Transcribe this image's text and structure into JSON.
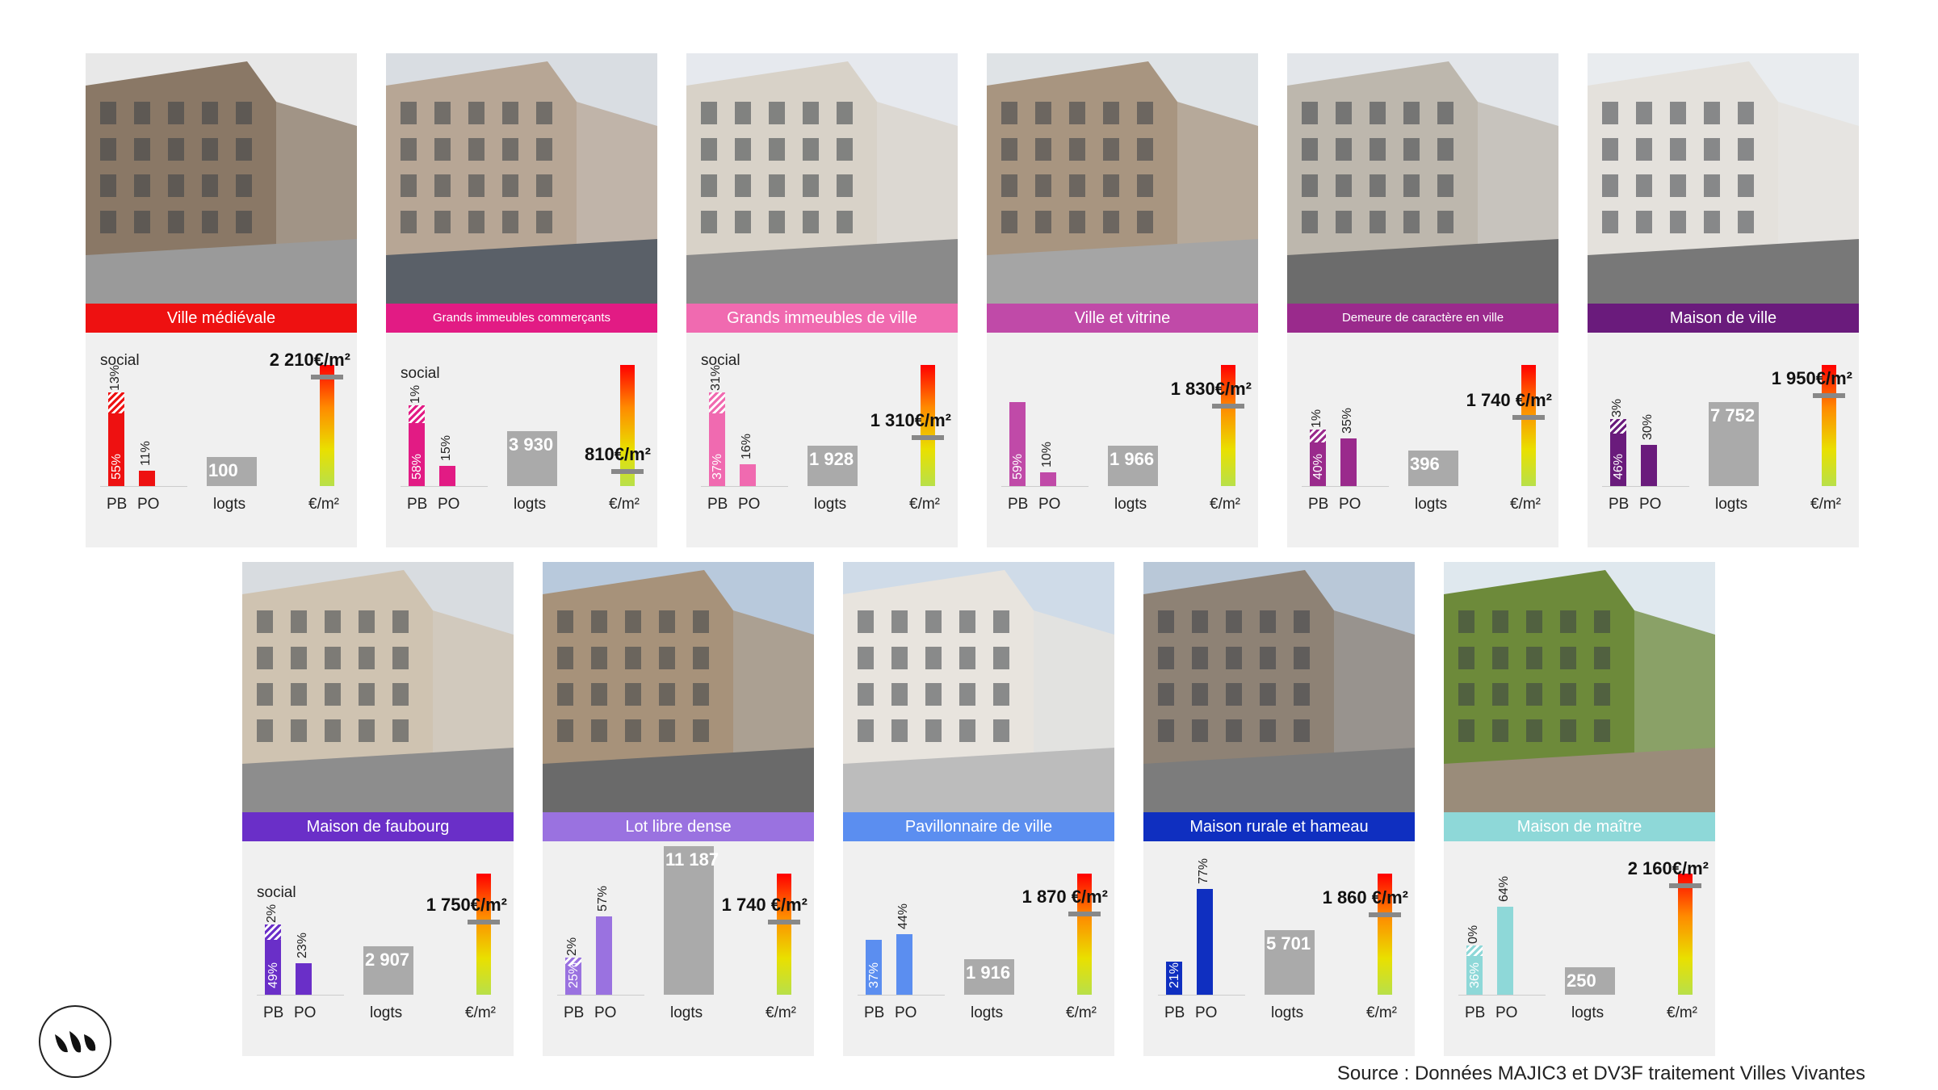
{
  "cards": [
    {
      "title": "Ville médiévale",
      "color": "#ee1111",
      "social_label": "social",
      "pb_social": "13%",
      "pb_other": "55%",
      "po": "11%",
      "logts": "100",
      "price": "2 210€/m²",
      "pb_frac": 0.68,
      "po_frac": 0.11,
      "logts_frac": 0.18,
      "price_frac": 0.9
    },
    {
      "title": "Grands immeubles commerçants",
      "color": "#e21b84",
      "social_label": "social",
      "pb_social": "1%",
      "pb_other": "58%",
      "po": "15%",
      "logts": "3 930",
      "price": "810€/m²",
      "pb_frac": 0.59,
      "po_frac": 0.15,
      "logts_frac": 0.34,
      "price_frac": 0.12
    },
    {
      "title": "Grands immeubles de ville",
      "color": "#f06ab0",
      "social_label": "social",
      "pb_social": "31%",
      "pb_other": "37%",
      "po": "16%",
      "logts": "1 928",
      "price": "1 310€/m²",
      "pb_frac": 0.68,
      "po_frac": 0.16,
      "logts_frac": 0.25,
      "price_frac": 0.4
    },
    {
      "title": "Ville et vitrine",
      "color": "#c04aa8",
      "social_label": "",
      "pb_social": "",
      "pb_other": "59%",
      "po": "10%",
      "logts": "1 966",
      "price": "1 830€/m²",
      "pb_frac": 0.61,
      "po_frac": 0.1,
      "logts_frac": 0.25,
      "price_frac": 0.66
    },
    {
      "title": "Demeure de caractère en ville",
      "color": "#9a2a8c",
      "social_label": "",
      "pb_social": "1%",
      "pb_other": "40%",
      "po": "35%",
      "logts": "396",
      "price": "1 740 €/m²",
      "pb_frac": 0.41,
      "po_frac": 0.35,
      "logts_frac": 0.22,
      "price_frac": 0.57
    },
    {
      "title": "Maison de ville",
      "color": "#6a1b7c",
      "social_label": "",
      "pb_social": "3%",
      "pb_other": "46%",
      "po": "30%",
      "logts": "7 752",
      "price": "1 950€/m²",
      "pb_frac": 0.49,
      "po_frac": 0.3,
      "logts_frac": 0.52,
      "price_frac": 0.75
    },
    {
      "title": "Maison de faubourg",
      "color": "#6a2fc8",
      "social_label": "social",
      "pb_social": "2%",
      "pb_other": "49%",
      "po": "23%",
      "logts": "2 907",
      "price": "1 750€/m²",
      "pb_frac": 0.51,
      "po_frac": 0.23,
      "logts_frac": 0.3,
      "price_frac": 0.6
    },
    {
      "title": "Lot libre dense",
      "color": "#9a72e0",
      "social_label": "",
      "pb_social": "2%",
      "pb_other": "25%",
      "po": "57%",
      "logts": "11 187",
      "price": "1 740 €/m²",
      "pb_frac": 0.27,
      "po_frac": 0.57,
      "logts_frac": 0.92,
      "price_frac": 0.6
    },
    {
      "title": "Pavillonnaire de ville",
      "color": "#5b8ef0",
      "social_label": "",
      "pb_social": "",
      "pb_other": "37%",
      "po": "44%",
      "logts": "1 916",
      "price": "1 870 €/m²",
      "pb_frac": 0.4,
      "po_frac": 0.44,
      "logts_frac": 0.22,
      "price_frac": 0.67
    },
    {
      "title": "Maison rurale et hameau",
      "color": "#0f2fc0",
      "social_label": "",
      "pb_social": "",
      "pb_other": "21%",
      "po": "77%",
      "logts": "5 701",
      "price": "1 860 €/m²",
      "pb_frac": 0.24,
      "po_frac": 0.77,
      "logts_frac": 0.4,
      "price_frac": 0.66
    },
    {
      "title": "Maison de maître",
      "color": "#8ed8d8",
      "social_label": "",
      "pb_social": "0%",
      "pb_other": "36%",
      "po": "64%",
      "logts": "250",
      "price": "2 160€/m²",
      "pb_frac": 0.36,
      "po_frac": 0.64,
      "logts_frac": 0.17,
      "price_frac": 0.9
    }
  ],
  "axis": {
    "pb": "PB",
    "po": "PO",
    "logts": "logts",
    "eur": "€/m²"
  },
  "source": "Source : Données MAJIC3 et DV3F traitement Villes Vivantes",
  "logo_icon": "villes-vivantes-logo-icon"
}
